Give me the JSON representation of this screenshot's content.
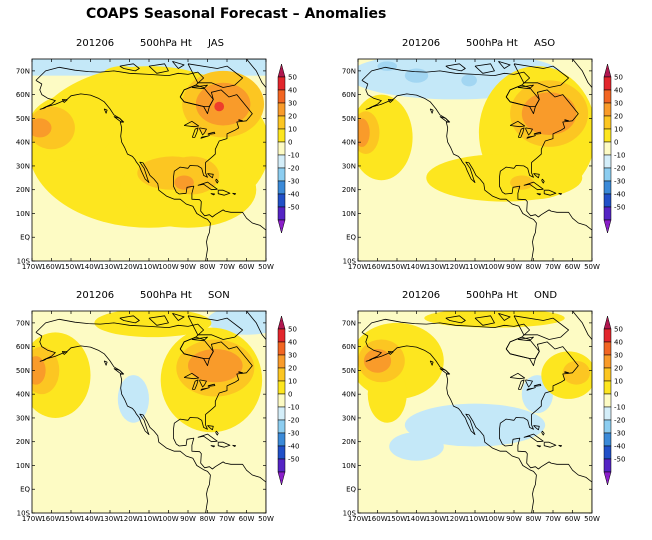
{
  "title": "COAPS Seasonal Forecast – Anomalies",
  "colors": {
    "ocean_bg": "#fdfbc4",
    "light_yellow": "#fdf5a0",
    "yellow": "#fde61f",
    "yellow_orange": "#fcc622",
    "orange": "#f99b2a",
    "red": "#ee3d2c",
    "light_blue": "#c4e8f8",
    "mid_blue": "#a2d6f2",
    "blue": "#3b8ad8",
    "coast": "#000000"
  },
  "colorbar": {
    "labels": [
      "50",
      "40",
      "30",
      "20",
      "10",
      "0",
      "-10",
      "-20",
      "-30",
      "-40",
      "-50"
    ],
    "colors": [
      "#b0174f",
      "#e2262c",
      "#f26522",
      "#f99b2a",
      "#fcc622",
      "#fde61f",
      "#fdfbc4",
      "#d4eef9",
      "#8ccdf0",
      "#3b8ad8",
      "#2150c8",
      "#5424c4",
      "#8a1ec8"
    ]
  },
  "axes": {
    "lat_labels": [
      "70N",
      "60N",
      "50N",
      "40N",
      "30N",
      "20N",
      "10N",
      "EQ",
      "10S"
    ],
    "lon_labels": [
      "170W",
      "160W",
      "150W",
      "140W",
      "130W",
      "120W",
      "110W",
      "100W",
      "90W",
      "80W",
      "70W",
      "60W",
      "50W"
    ]
  },
  "panels": [
    {
      "date": "201206",
      "variable": "500hPa Ht",
      "period": "JAS"
    },
    {
      "date": "201206",
      "variable": "500hPa Ht",
      "period": "ASO"
    },
    {
      "date": "201206",
      "variable": "500hPa Ht",
      "period": "SON"
    },
    {
      "date": "201206",
      "variable": "500hPa Ht",
      "period": "OND"
    }
  ]
}
